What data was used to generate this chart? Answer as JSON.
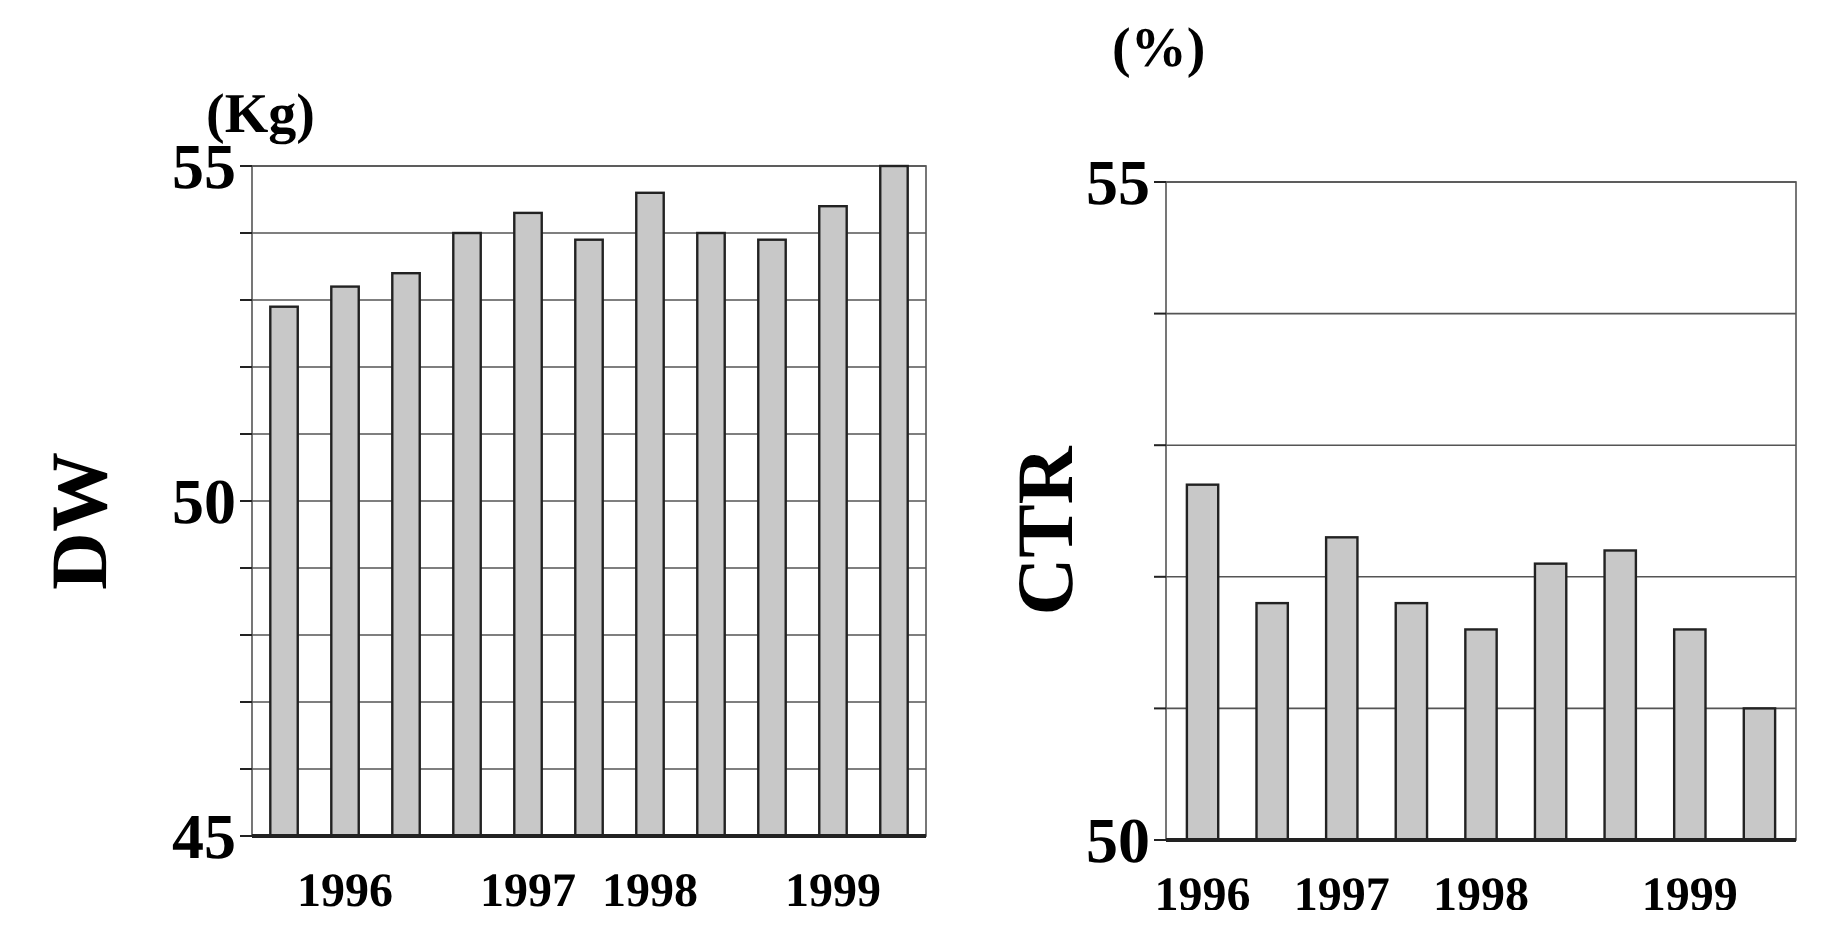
{
  "chart_data": [
    {
      "type": "bar",
      "ylabel": "DW",
      "annotations": [
        "(Kg)"
      ],
      "categories": [
        null,
        "1996",
        null,
        null,
        "1997",
        null,
        "1998",
        null,
        null,
        "1999",
        null
      ],
      "values": [
        52.9,
        53.2,
        53.4,
        54.0,
        54.3,
        53.9,
        54.6,
        54.0,
        53.9,
        54.4,
        55.0
      ],
      "color": "#c8c8c8",
      "ylim": [
        45,
        55
      ],
      "yticks": [
        45,
        {
          "value": 46,
          "label": null
        },
        {
          "value": 47,
          "label": null
        },
        {
          "value": 48,
          "label": null
        },
        {
          "value": 49,
          "label": null
        },
        50,
        {
          "value": 51,
          "label": null
        },
        {
          "value": 52,
          "label": null
        },
        {
          "value": 53,
          "label": null
        },
        {
          "value": 54,
          "label": null
        },
        55
      ],
      "grid": "y"
    },
    {
      "type": "bar",
      "ylabel": "CTR",
      "annotations": [
        "(%)"
      ],
      "categories": [
        "1996",
        null,
        "1997",
        null,
        "1998",
        null,
        null,
        "1999",
        null
      ],
      "values": [
        52.7,
        51.8,
        52.3,
        51.8,
        51.6,
        52.1,
        52.2,
        51.6,
        51.0
      ],
      "color": "#c8c8c8",
      "ylim": [
        50,
        55
      ],
      "yticks": [
        50,
        {
          "value": 51,
          "label": null
        },
        {
          "value": 52,
          "label": null
        },
        {
          "value": 53,
          "label": null
        },
        {
          "value": 54,
          "label": null
        },
        55
      ],
      "grid": "y"
    }
  ]
}
